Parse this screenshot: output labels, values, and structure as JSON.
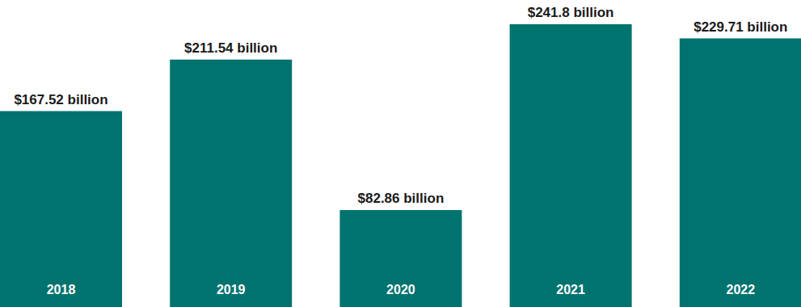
{
  "chart_data": {
    "type": "bar",
    "categories": [
      "2018",
      "2019",
      "2020",
      "2021",
      "2022"
    ],
    "values": [
      167.52,
      211.54,
      82.86,
      241.8,
      229.71
    ],
    "value_labels": [
      "$167.52 billion",
      "$211.54 billion",
      "$82.86 billion",
      "$241.8 billion",
      "$229.71 billion"
    ],
    "color": "#00736f",
    "data_labels": true
  }
}
